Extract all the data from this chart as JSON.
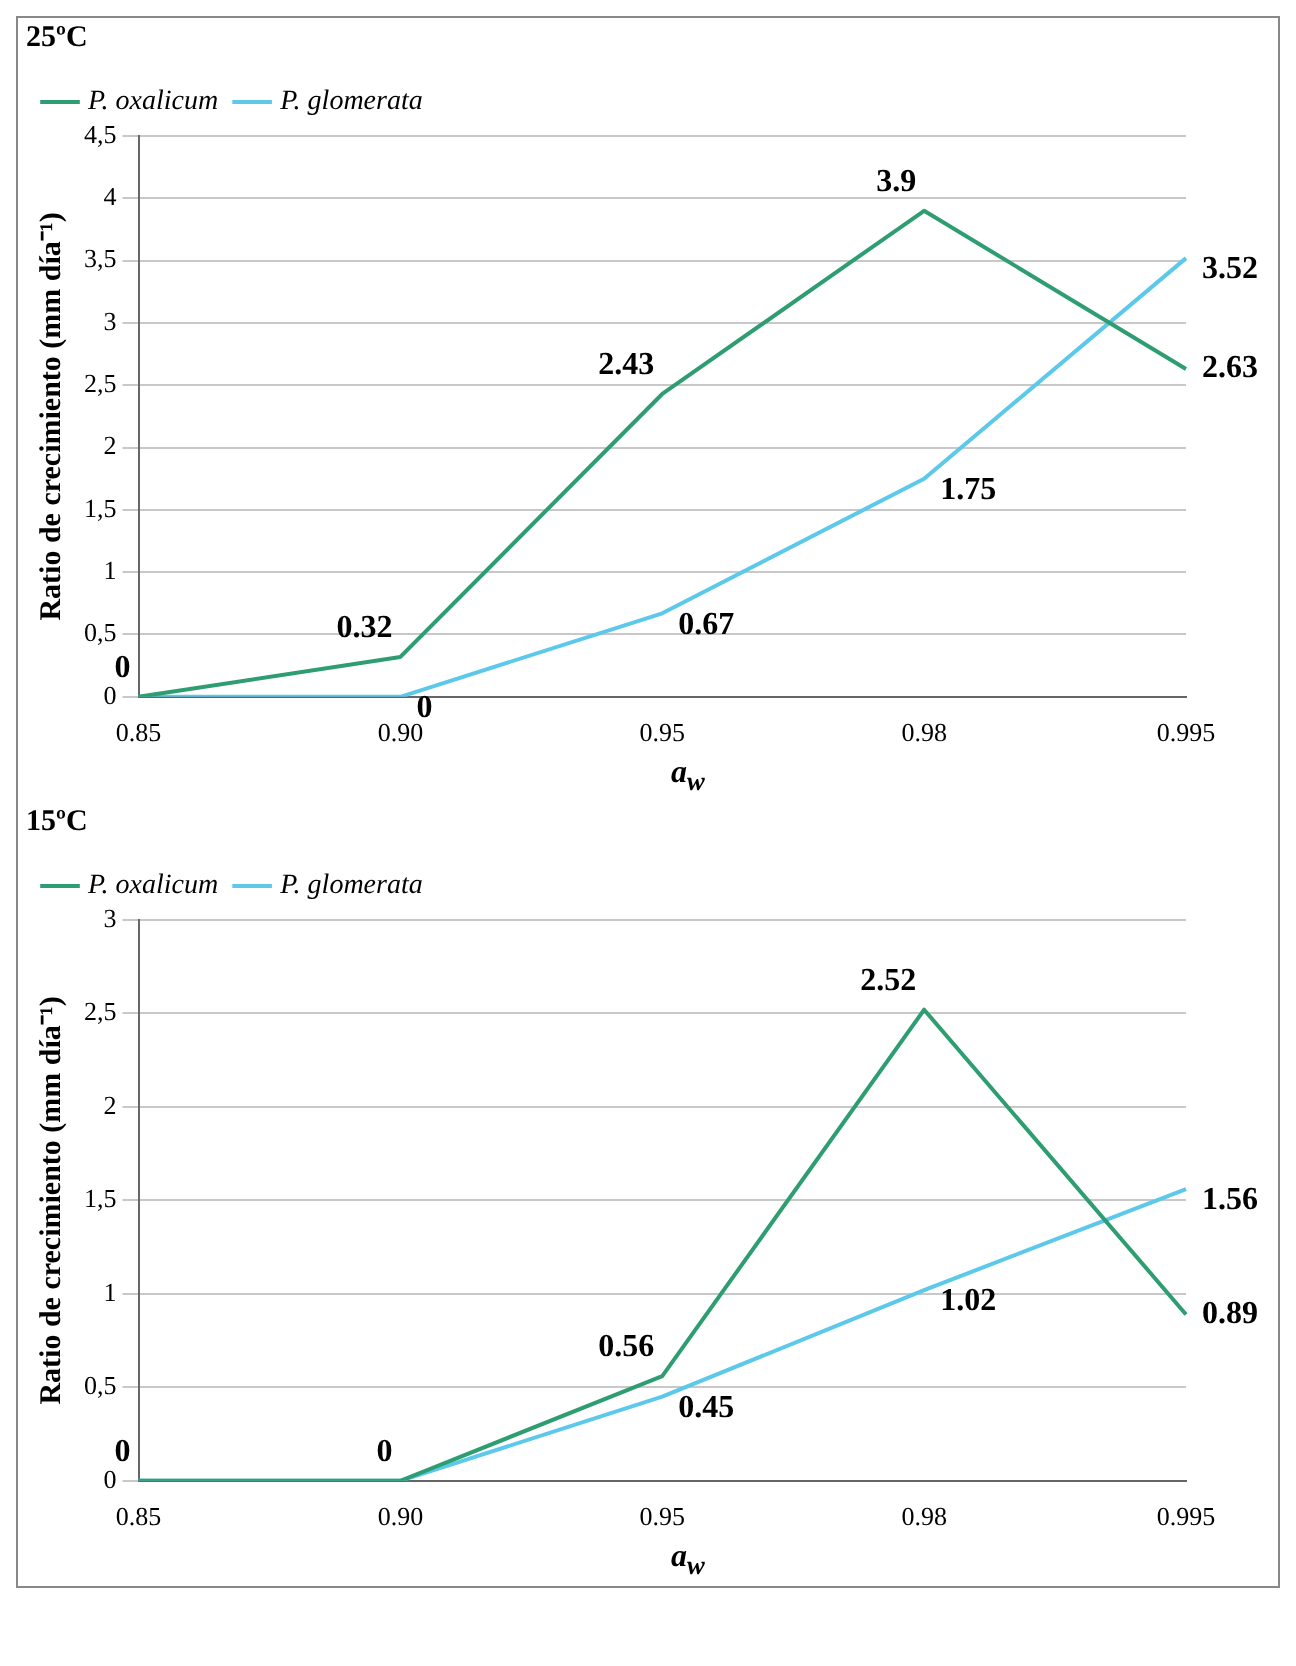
{
  "chart_data": [
    {
      "type": "line",
      "title": "25ºC",
      "xlabel": "a$_{w}$",
      "ylabel": "Ratio de crecimiento (mm día⁻¹)",
      "categories": [
        "0.85",
        "0.90",
        "0.95",
        "0.98",
        "0.995"
      ],
      "series": [
        {
          "name": "P. oxalicum",
          "color": "#2e9e72",
          "values": [
            0,
            0.32,
            2.43,
            3.9,
            2.63
          ],
          "value_labels": [
            "0",
            "0.32",
            "2.43",
            "3.9",
            "2.63"
          ]
        },
        {
          "name": "P. glomerata",
          "color": "#5cc8ea",
          "values": [
            0,
            0,
            0.67,
            1.75,
            3.52
          ],
          "value_labels": [
            null,
            "0",
            "0.67",
            "1.75",
            "3.52"
          ]
        }
      ],
      "ylim": [
        0,
        4.5
      ],
      "yticks": [
        0,
        {
          "value": 0.5,
          "label": "0,5"
        },
        1,
        {
          "value": 1.5,
          "label": "1,5"
        },
        2,
        {
          "value": 2.5,
          "label": "2,5"
        },
        3,
        {
          "value": 3.5,
          "label": "3,5"
        },
        4,
        {
          "value": 4.5,
          "label": "4,5"
        }
      ],
      "grid": "y",
      "legend": "top left",
      "marker": "none",
      "line_style": "solid"
    },
    {
      "type": "line",
      "title": "15ºC",
      "xlabel": "a$_{w}$",
      "ylabel": "Ratio de crecimiento (mm día⁻¹)",
      "categories": [
        "0.85",
        "0.90",
        "0.95",
        "0.98",
        "0.995"
      ],
      "series": [
        {
          "name": "P. oxalicum",
          "color": "#2e9e72",
          "values": [
            0,
            0,
            0.56,
            2.52,
            0.89
          ],
          "value_labels": [
            "0",
            "0",
            "0.56",
            "2.52",
            "0.89"
          ]
        },
        {
          "name": "P. glomerata",
          "color": "#5cc8ea",
          "values": [
            0,
            0,
            0.45,
            1.02,
            1.56
          ],
          "value_labels": [
            null,
            null,
            "0.45",
            "1.02",
            "1.56"
          ]
        }
      ],
      "ylim": [
        0,
        3
      ],
      "yticks": [
        0,
        {
          "value": 0.5,
          "label": "0,5"
        },
        1,
        {
          "value": 1.5,
          "label": "1,5"
        },
        2,
        {
          "value": 2.5,
          "label": "2,5"
        },
        3
      ],
      "grid": "y",
      "legend": "top left",
      "marker": "none",
      "line_style": "solid"
    }
  ]
}
